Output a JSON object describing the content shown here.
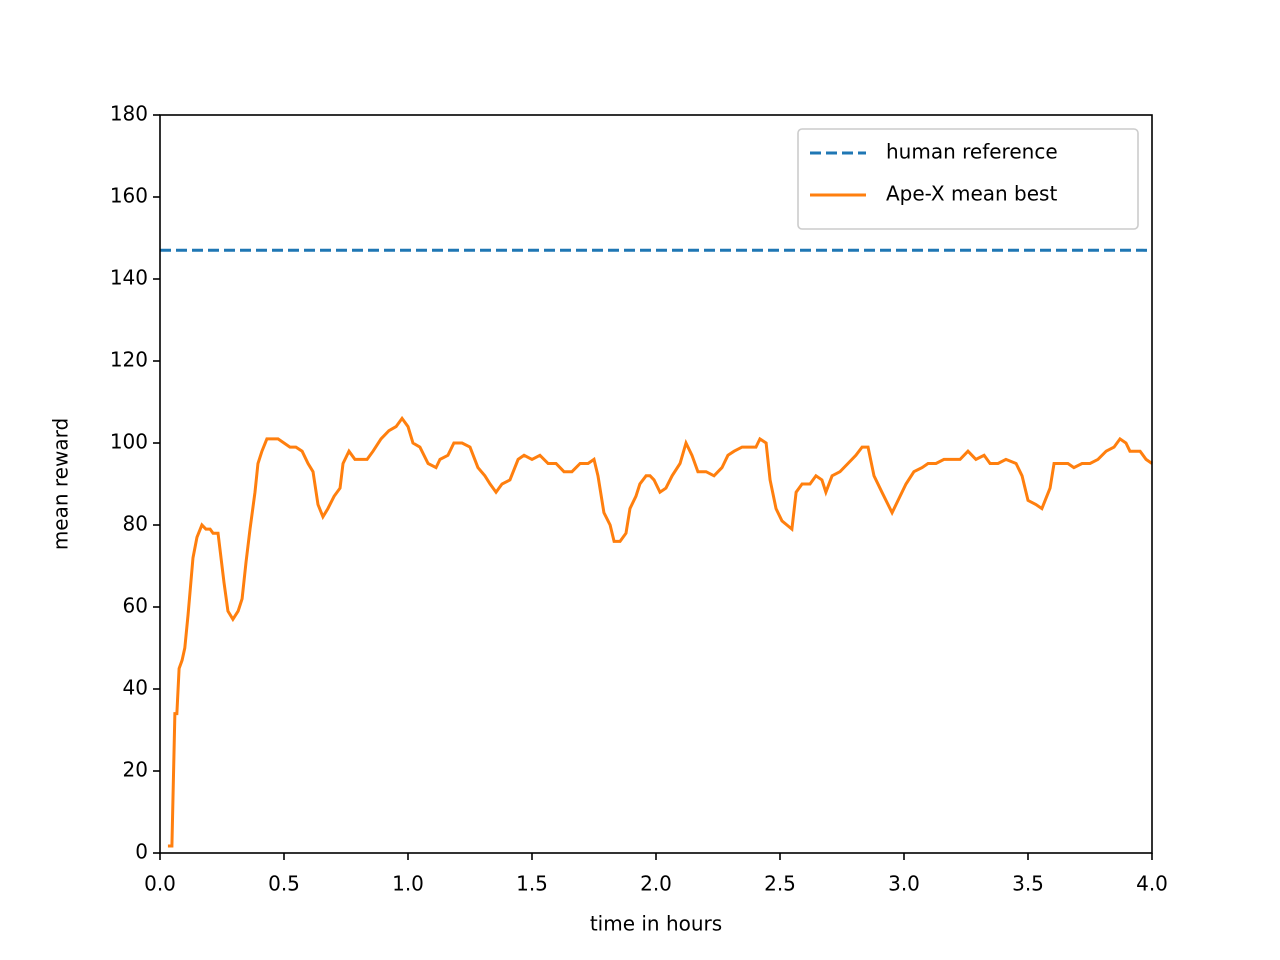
{
  "chart_data": {
    "type": "line",
    "xlabel": "time in hours",
    "ylabel": "mean reward",
    "xlim": [
      0,
      4
    ],
    "ylim": [
      0,
      180
    ],
    "xticks": [
      {
        "value": 0,
        "label": "0.0"
      },
      0.5,
      {
        "value": 1,
        "label": "1.0"
      },
      1.5,
      {
        "value": 2,
        "label": "2.0"
      },
      2.5,
      {
        "value": 3,
        "label": "3.0"
      },
      3.5,
      {
        "value": 4,
        "label": "4.0"
      }
    ],
    "yticks": [
      0,
      20,
      40,
      60,
      80,
      100,
      120,
      140,
      160,
      180
    ],
    "legend": "upper right",
    "series": [
      {
        "name": "human reference",
        "color": "#1f77b4",
        "linestyle": "dashed",
        "x": [
          0,
          4
        ],
        "values": [
          147,
          147
        ]
      },
      {
        "name": "Ape-X mean best",
        "color": "#ff7f0e",
        "linestyle": "solid",
        "x": [
          0.032,
          0.048,
          0.06,
          0.068,
          0.077,
          0.089,
          0.1,
          0.113,
          0.133,
          0.149,
          0.169,
          0.185,
          0.202,
          0.214,
          0.234,
          0.242,
          0.258,
          0.274,
          0.294,
          0.315,
          0.331,
          0.347,
          0.363,
          0.383,
          0.395,
          0.411,
          0.431,
          0.452,
          0.476,
          0.5,
          0.524,
          0.548,
          0.573,
          0.597,
          0.617,
          0.637,
          0.657,
          0.677,
          0.702,
          0.726,
          0.738,
          0.762,
          0.786,
          0.81,
          0.835,
          0.859,
          0.891,
          0.923,
          0.952,
          0.976,
          1.0,
          1.02,
          1.048,
          1.081,
          1.113,
          1.129,
          1.161,
          1.185,
          1.218,
          1.25,
          1.282,
          1.31,
          1.331,
          1.355,
          1.379,
          1.411,
          1.444,
          1.468,
          1.5,
          1.532,
          1.565,
          1.597,
          1.629,
          1.661,
          1.694,
          1.726,
          1.75,
          1.766,
          1.79,
          1.815,
          1.831,
          1.855,
          1.879,
          1.895,
          1.919,
          1.935,
          1.96,
          1.976,
          1.992,
          2.016,
          2.04,
          2.065,
          2.097,
          2.121,
          2.145,
          2.169,
          2.202,
          2.234,
          2.266,
          2.29,
          2.315,
          2.347,
          2.379,
          2.403,
          2.419,
          2.444,
          2.46,
          2.484,
          2.508,
          2.548,
          2.565,
          2.589,
          2.621,
          2.645,
          2.669,
          2.685,
          2.71,
          2.742,
          2.774,
          2.806,
          2.831,
          2.855,
          2.879,
          2.911,
          2.952,
          2.976,
          3.008,
          3.04,
          3.073,
          3.097,
          3.129,
          3.161,
          3.194,
          3.226,
          3.258,
          3.29,
          3.323,
          3.347,
          3.379,
          3.411,
          3.452,
          3.476,
          3.5,
          3.532,
          3.556,
          3.589,
          3.605,
          3.637,
          3.661,
          3.685,
          3.718,
          3.75,
          3.782,
          3.815,
          3.847,
          3.871,
          3.895,
          3.911,
          3.952,
          3.976,
          4.0
        ],
        "values": [
          1.7,
          1.7,
          34,
          34,
          45,
          47,
          50,
          58,
          72,
          77,
          80,
          79,
          79,
          78,
          78,
          74,
          66,
          59,
          57,
          59,
          62,
          71,
          79,
          88,
          95,
          98,
          101,
          101,
          101,
          100,
          99,
          99,
          98,
          95,
          93,
          85,
          82,
          84,
          87,
          89,
          95,
          98,
          96,
          96,
          96,
          98,
          101,
          103,
          104,
          106,
          104,
          100,
          99,
          95,
          94,
          96,
          97,
          100,
          100,
          99,
          94,
          92,
          90,
          88,
          90,
          91,
          96,
          97,
          96,
          97,
          95,
          95,
          93,
          93,
          95,
          95,
          96,
          92,
          83,
          80,
          76,
          76,
          78,
          84,
          87,
          90,
          92,
          92,
          91,
          88,
          89,
          92,
          95,
          100,
          97,
          93,
          93,
          92,
          94,
          97,
          98,
          99,
          99,
          99,
          101,
          100,
          91,
          84,
          81,
          79,
          88,
          90,
          90,
          92,
          91,
          88,
          92,
          93,
          95,
          97,
          99,
          99,
          92,
          88,
          83,
          86,
          90,
          93,
          94,
          95,
          95,
          96,
          96,
          96,
          98,
          96,
          97,
          95,
          95,
          96,
          95,
          92,
          86,
          85,
          84,
          89,
          95,
          95,
          95,
          94,
          95,
          95,
          96,
          98,
          99,
          101,
          100,
          98,
          98,
          96,
          95
        ]
      }
    ]
  }
}
